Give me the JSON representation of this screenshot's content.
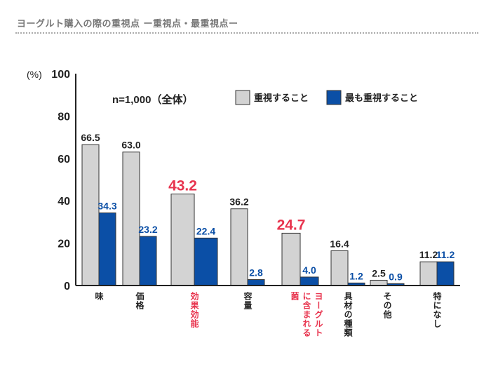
{
  "title": "ヨーグルト購入の際の重視点 ー重視点・最重視点ー",
  "chart_data": {
    "type": "bar",
    "ylabel": "(%)",
    "ylim": [
      0,
      100
    ],
    "yticks": [
      0,
      20,
      40,
      60,
      80,
      100
    ],
    "annotation": "n=1,000（全体）",
    "legend_position": "top-right",
    "categories": [
      "味",
      "価格",
      "効果効能",
      "容量",
      "ヨーグルトに含まれる菌",
      "具材の種類",
      "その他",
      "特になし"
    ],
    "highlight_categories": [
      "効果効能",
      "ヨーグルトに含まれる菌"
    ],
    "highlight_color": "#e8354f",
    "series": [
      {
        "name": "重視すること",
        "color": "#d3d3d3",
        "values": [
          66.5,
          63.0,
          43.2,
          36.2,
          24.7,
          16.4,
          2.5,
          11.2
        ]
      },
      {
        "name": "最も重視すること",
        "color": "#0b4fa6",
        "values": [
          34.3,
          23.2,
          22.4,
          2.8,
          4.0,
          1.2,
          0.9,
          11.2
        ]
      }
    ]
  }
}
